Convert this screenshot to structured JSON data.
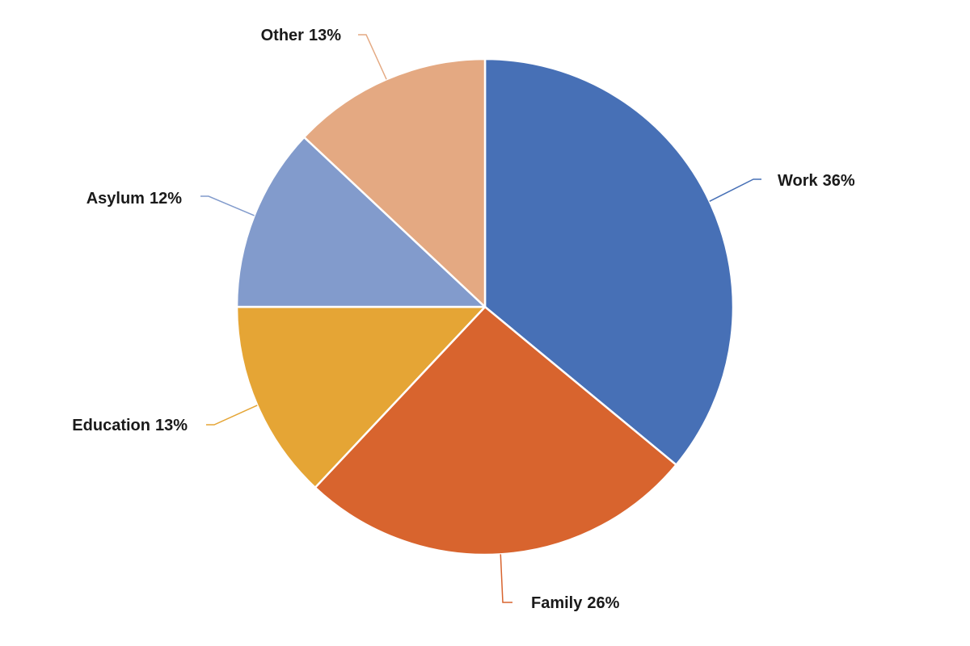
{
  "chart_data": {
    "type": "pie",
    "categories": [
      "Work",
      "Family",
      "Education",
      "Asylum",
      "Other"
    ],
    "values": [
      36,
      26,
      13,
      12,
      13
    ],
    "value_labels": [
      "36%",
      "26%",
      "13%",
      "12%",
      "13%"
    ],
    "colors": [
      "#4770b6",
      "#d8642e",
      "#e5a535",
      "#829bcc",
      "#e4a982"
    ]
  }
}
